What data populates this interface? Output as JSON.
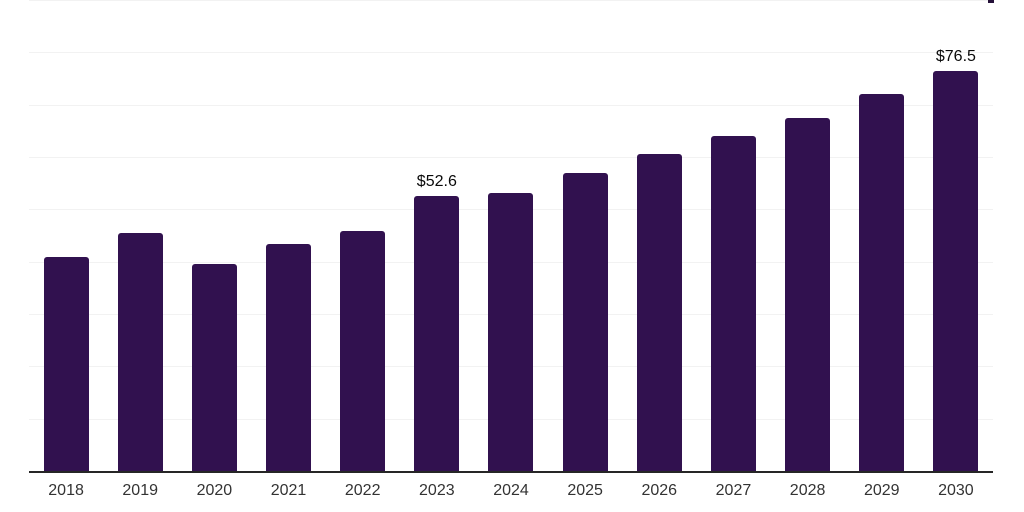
{
  "chart_data": {
    "type": "bar",
    "title": "",
    "xlabel": "",
    "ylabel": "",
    "categories": [
      "2018",
      "2019",
      "2020",
      "2021",
      "2022",
      "2023",
      "2024",
      "2025",
      "2026",
      "2027",
      "2028",
      "2029",
      "2030"
    ],
    "values": [
      40.9,
      45.4,
      39.5,
      43.4,
      45.8,
      52.6,
      53.2,
      56.9,
      60.6,
      64.0,
      67.5,
      72.1,
      76.5
    ],
    "data_labels": {
      "2023": "$52.6",
      "2030": "$76.5"
    },
    "value_prefix": "$",
    "ylim": [
      0,
      90
    ],
    "gridline_step": 10,
    "grid": "horizontal-only",
    "legend": "none",
    "colors": {
      "bar": "#31114f",
      "gridline": "#f2f2f2",
      "axis_line": "#262626",
      "tick_label": "#333333",
      "data_label": "#0a0a0a",
      "background": "#ffffff"
    }
  }
}
